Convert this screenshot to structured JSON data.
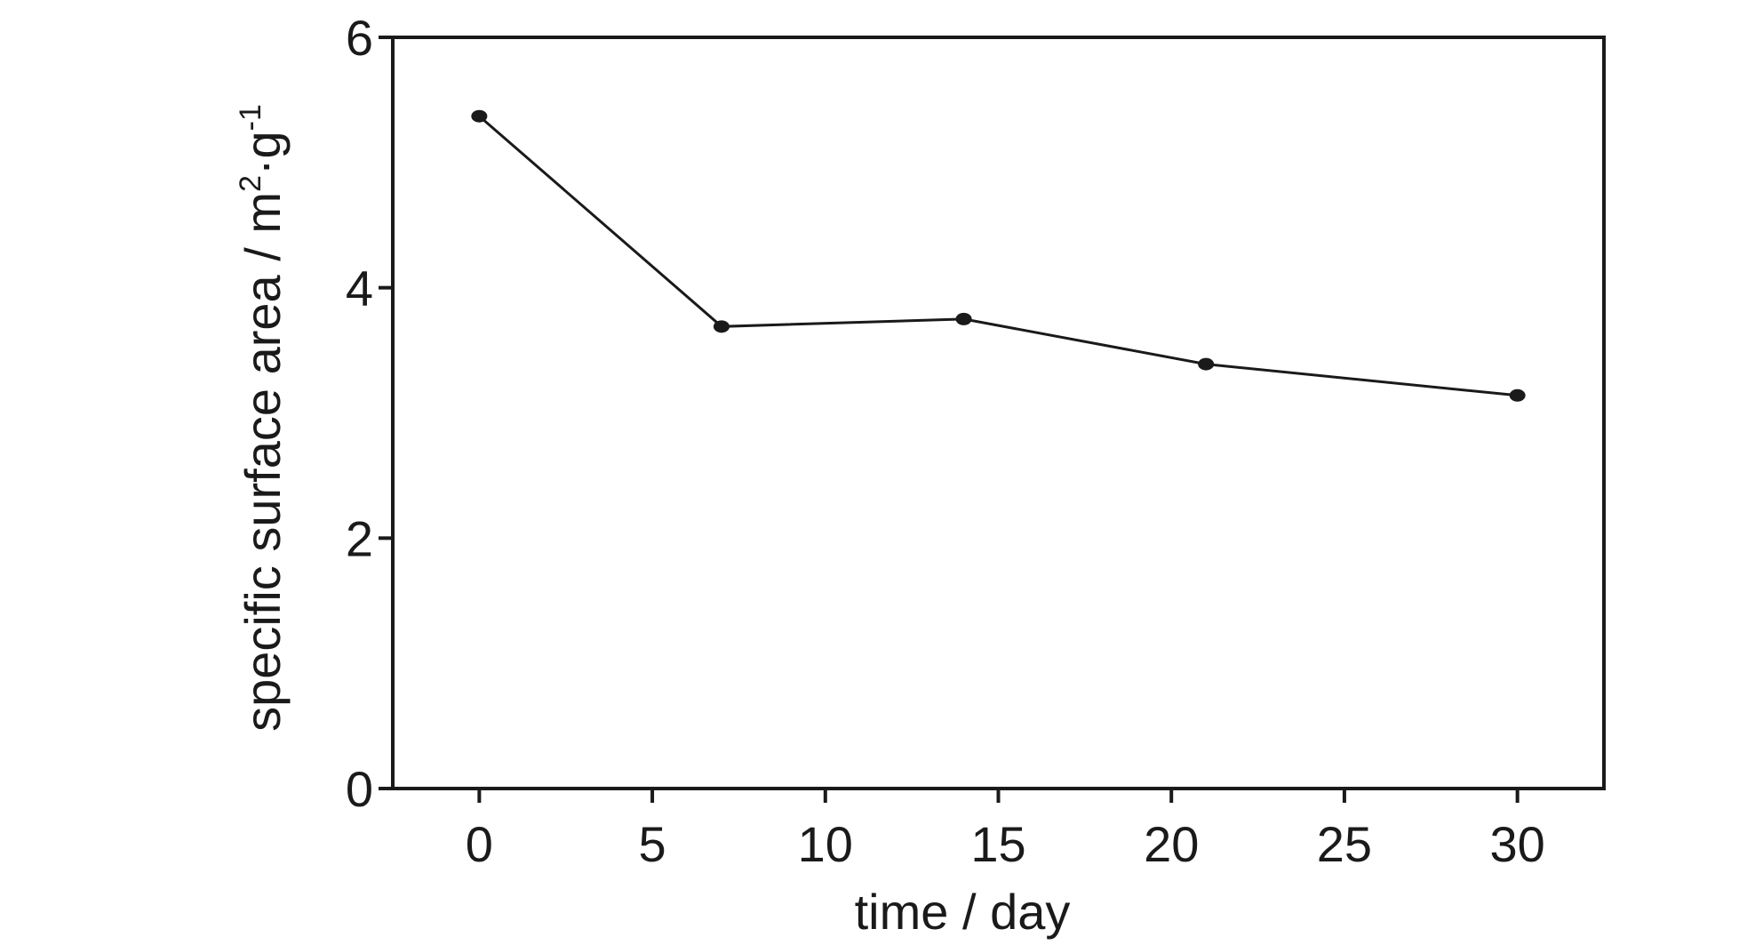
{
  "chart_data": {
    "type": "line",
    "title": "",
    "xlabel": "time / day",
    "ylabel": "specific surface area / m",
    "ylabel_sup1": "2",
    "ylabel_mid": "·g",
    "ylabel_sup2": "-1",
    "xlim": [
      -2.5,
      32.5
    ],
    "ylim": [
      0,
      6
    ],
    "x_ticks": [
      0,
      5,
      10,
      15,
      20,
      25,
      30
    ],
    "y_ticks": [
      0,
      2,
      4,
      6
    ],
    "grid": false,
    "series": [
      {
        "x": [
          0,
          7,
          14,
          21,
          30
        ],
        "y": [
          5.37,
          3.69,
          3.75,
          3.39,
          3.14
        ]
      }
    ],
    "colors": {
      "line": "#1a1a1a",
      "marker": "#1a1a1a",
      "axes": "#1a1a1a"
    }
  }
}
